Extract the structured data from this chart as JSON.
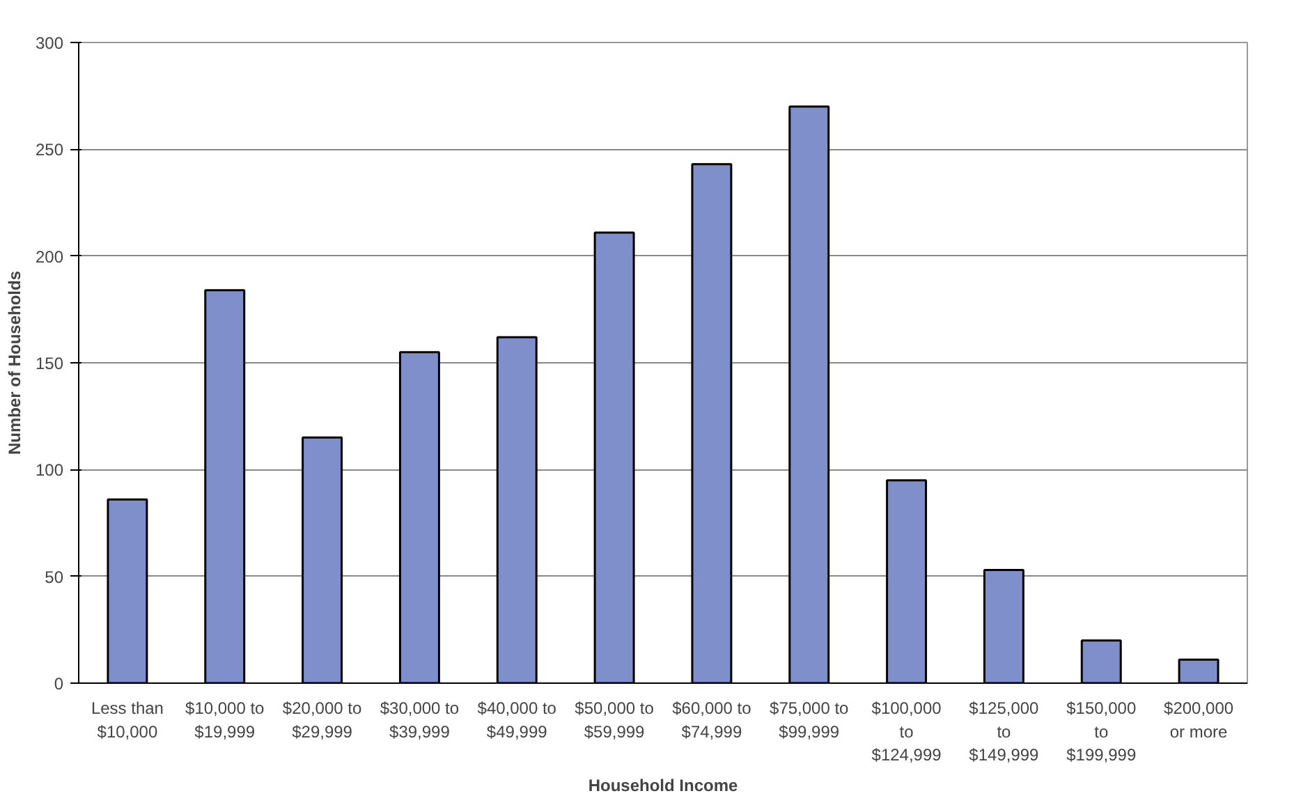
{
  "chart_data": {
    "type": "bar",
    "xlabel": "Household Income",
    "ylabel": "Number of Households",
    "categories": [
      "Less than\n$10,000",
      "$10,000 to\n$19,999",
      "$20,000 to\n$29,999",
      "$30,000 to\n$39,999",
      "$40,000 to\n$49,999",
      "$50,000 to\n$59,999",
      "$60,000 to\n$74,999",
      "$75,000 to\n$99,999",
      "$100,000\nto\n$124,999",
      "$125,000\nto\n$149,999",
      "$150,000\nto\n$199,999",
      "$200,000\nor more"
    ],
    "values": [
      86,
      184,
      115,
      155,
      162,
      211,
      243,
      270,
      95,
      53,
      20,
      11
    ],
    "color": "#7f8fcc",
    "ylim": [
      0,
      300
    ],
    "yticks": [
      0,
      50,
      100,
      150,
      200,
      250,
      300
    ],
    "grid": "y"
  }
}
